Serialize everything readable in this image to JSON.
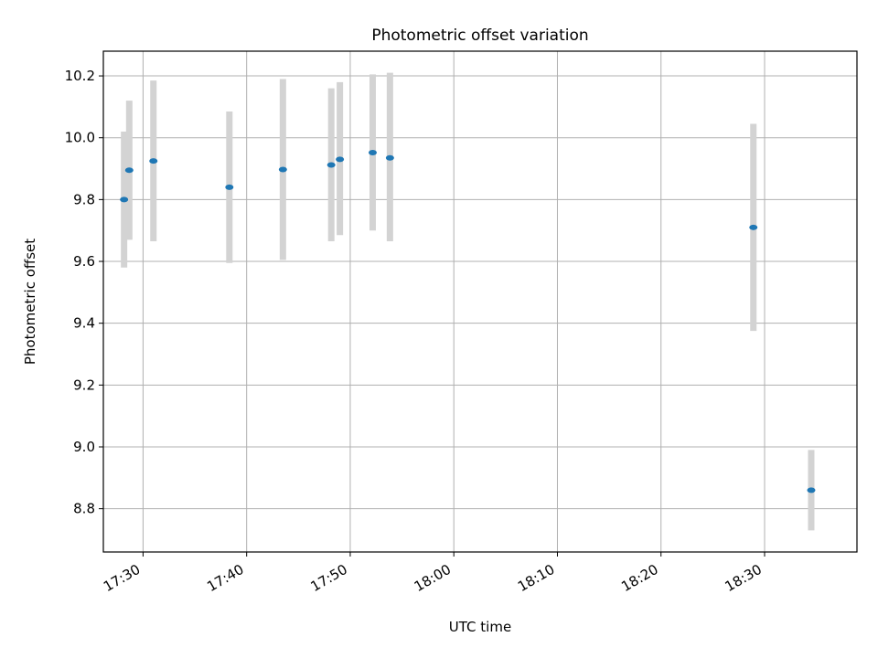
{
  "chart_data": {
    "type": "scatter",
    "title": "Photometric offset variation",
    "xlabel": "UTC time",
    "ylabel": "Photometric offset",
    "grid": true,
    "x_tick_labels": [
      "17:30",
      "17:40",
      "17:50",
      "18:00",
      "18:10",
      "18:20",
      "18:30"
    ],
    "y_tick_labels": [
      "8.8",
      "9.0",
      "9.2",
      "9.4",
      "9.6",
      "9.8",
      "10.0",
      "10.2"
    ],
    "xlim": [
      "17:26:10",
      "18:38:55"
    ],
    "ylim": [
      8.66,
      10.28
    ],
    "colors": {
      "points": "#1f77b4",
      "errorbars": "#d3d3d3",
      "grid": "#b0b0b0"
    },
    "points": [
      {
        "x": "17:28:10",
        "y": 9.8,
        "low": 9.58,
        "high": 10.02
      },
      {
        "x": "17:28:40",
        "y": 9.895,
        "low": 9.67,
        "high": 10.12
      },
      {
        "x": "17:31:00",
        "y": 9.925,
        "low": 9.665,
        "high": 10.185
      },
      {
        "x": "17:38:20",
        "y": 9.84,
        "low": 9.595,
        "high": 10.085
      },
      {
        "x": "17:43:30",
        "y": 9.897,
        "low": 9.605,
        "high": 10.19
      },
      {
        "x": "17:48:10",
        "y": 9.912,
        "low": 9.665,
        "high": 10.16
      },
      {
        "x": "17:49:00",
        "y": 9.93,
        "low": 9.685,
        "high": 10.18
      },
      {
        "x": "17:52:10",
        "y": 9.952,
        "low": 9.7,
        "high": 10.205
      },
      {
        "x": "17:53:50",
        "y": 9.935,
        "low": 9.665,
        "high": 10.21
      },
      {
        "x": "18:28:55",
        "y": 9.71,
        "low": 9.375,
        "high": 10.045
      },
      {
        "x": "18:34:30",
        "y": 8.86,
        "low": 8.73,
        "high": 8.99
      }
    ]
  }
}
